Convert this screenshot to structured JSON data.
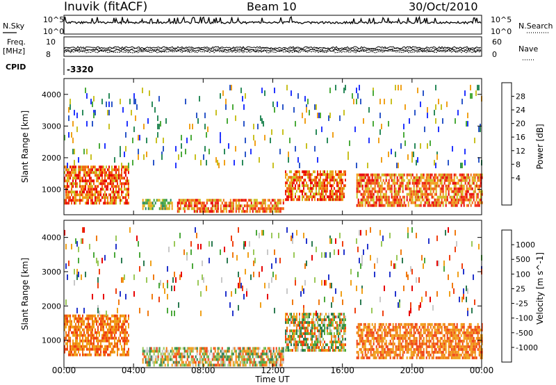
{
  "header": {
    "radar": "Inuvik (fitACF)",
    "beam": "Beam 10",
    "date": "30/Oct/2010"
  },
  "strips": {
    "nsky_label": "N.Sky",
    "nsky_ticks": [
      "10^5",
      "10^0"
    ],
    "nsearch_label": "N.Search",
    "nsearch_ticks": [
      "10^5",
      "10^0"
    ],
    "freq_label_1": "Freq.",
    "freq_label_2": "[MHz]",
    "freq_ticks": [
      "10",
      "8"
    ],
    "nave_label": "Nave",
    "nave_ticks": [
      "60",
      "0"
    ],
    "cpid_label": "CPID",
    "cpid_value": "-3320"
  },
  "chart_data": [
    {
      "type": "heatmap",
      "name": "power",
      "ylabel": "Slant Range [km]",
      "xlabel": "Time UT",
      "x_ticks": [
        "00:00",
        "04:00",
        "08:00",
        "12:00",
        "16:00",
        "20:00",
        "00:00"
      ],
      "y_ticks": [
        1000,
        2000,
        3000,
        4000
      ],
      "ylim": [
        200,
        4500
      ],
      "colorbar": {
        "label": "Power [dB]",
        "ticks": [
          "28",
          "24",
          "20",
          "16",
          "12",
          "8",
          "4"
        ],
        "colors": [
          "#2233ff",
          "#2a55c8",
          "#2a8a5a",
          "#4aaa3a",
          "#c8c020",
          "#f0a018",
          "#f06a10",
          "#f02a10",
          "#e80000"
        ]
      },
      "echo_regions": [
        {
          "t0": 0.0,
          "t1": 3.7,
          "r0": 600,
          "r1": 1750,
          "level": "strong"
        },
        {
          "t0": 4.5,
          "t1": 6.2,
          "r0": 400,
          "r1": 700,
          "level": "moderate"
        },
        {
          "t0": 6.5,
          "t1": 12.6,
          "r0": 300,
          "r1": 700,
          "level": "strong"
        },
        {
          "t0": 12.7,
          "t1": 16.2,
          "r0": 700,
          "r1": 1600,
          "level": "strong"
        },
        {
          "t0": 16.8,
          "t1": 24.0,
          "r0": 500,
          "r1": 1500,
          "level": "strong"
        },
        {
          "t0": 0.0,
          "t1": 24.0,
          "r0": 1800,
          "r1": 4300,
          "level": "sparse"
        }
      ]
    },
    {
      "type": "heatmap",
      "name": "velocity",
      "ylabel": "Slant Range [km]",
      "xlabel": "Time UT",
      "x_ticks": [
        "00:00",
        "04:00",
        "08:00",
        "12:00",
        "16:00",
        "20:00",
        "00:00"
      ],
      "y_ticks": [
        1000,
        2000,
        3000,
        4000
      ],
      "ylim": [
        200,
        4500
      ],
      "colorbar": {
        "label": "Velocity [m s^-1]",
        "ticks": [
          "1000",
          "500",
          "100",
          "25",
          "-25",
          "-100",
          "-500",
          "-1000"
        ],
        "colors": [
          "#2233cc",
          "#2a7a50",
          "#4aa83a",
          "#9ac858",
          "#c8c8c8",
          "#f0a018",
          "#f07a10",
          "#f04010",
          "#e80000"
        ]
      },
      "echo_regions": [
        {
          "t0": 0.0,
          "t1": 3.7,
          "r0": 600,
          "r1": 1750,
          "level": "negative"
        },
        {
          "t0": 4.5,
          "t1": 12.6,
          "r0": 300,
          "r1": 800,
          "level": "mixed"
        },
        {
          "t0": 12.7,
          "t1": 16.2,
          "r0": 700,
          "r1": 1800,
          "level": "mixed"
        },
        {
          "t0": 16.8,
          "t1": 24.0,
          "r0": 500,
          "r1": 1500,
          "level": "negative"
        },
        {
          "t0": 0.0,
          "t1": 24.0,
          "r0": 1800,
          "r1": 4300,
          "level": "sparse"
        }
      ]
    }
  ]
}
